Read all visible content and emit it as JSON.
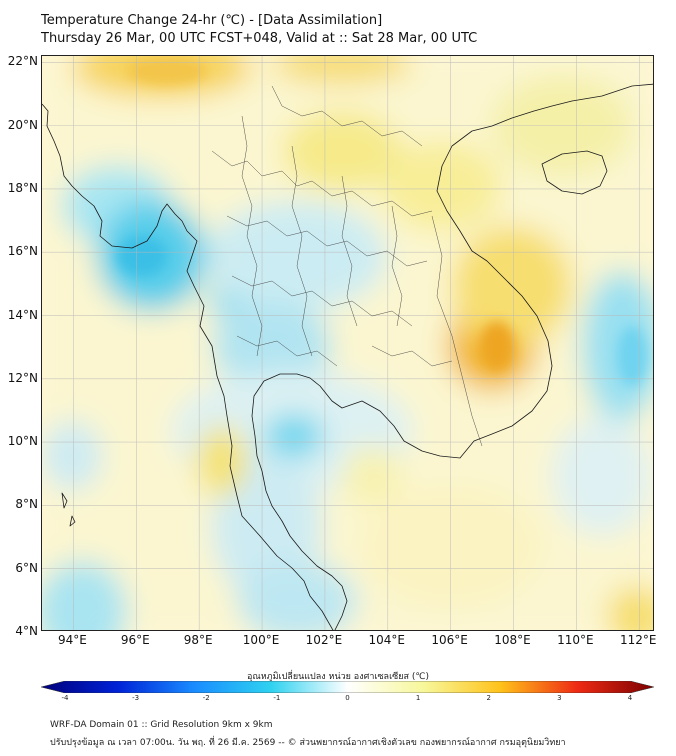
{
  "header": {
    "title": "Temperature Change 24-hr (℃) - [Data Assimilation]",
    "subtitle": "Thursday 26 Mar, 00 UTC FCST+048, Valid at :: Sat 28 Mar, 00 UTC"
  },
  "map": {
    "lon_range": [
      93,
      112.5
    ],
    "lat_range": [
      4,
      22.2
    ],
    "x_labels": [
      "94°E",
      "96°E",
      "98°E",
      "100°E",
      "102°E",
      "104°E",
      "106°E",
      "108°E",
      "110°E",
      "112°E"
    ],
    "x_values": [
      94,
      96,
      98,
      100,
      102,
      104,
      106,
      108,
      110,
      112
    ],
    "y_labels": [
      "22°N",
      "20°N",
      "18°N",
      "16°N",
      "14°N",
      "12°N",
      "10°N",
      "8°N",
      "6°N",
      "4°N"
    ],
    "y_values": [
      22,
      20,
      18,
      16,
      14,
      12,
      10,
      8,
      6,
      4
    ]
  },
  "colorbar": {
    "title": "อุณหภูมิเปลี่ยนแปลง หน่วย องศาเซลเซียส (℃)",
    "range": [
      -4,
      4
    ],
    "ticks": [
      "-4",
      "-3",
      "-2",
      "-1",
      "0",
      "1",
      "2",
      "3",
      "4"
    ],
    "colors": [
      "#00007a",
      "#0022d6",
      "#1a8cff",
      "#2ed2f0",
      "#ffffff",
      "#f7f79a",
      "#ffc21a",
      "#ee2a14",
      "#7a0000"
    ]
  },
  "footer": {
    "line1": "WRF-DA Domain 01 :: Grid Resolution 9km x 9km",
    "line2": "ปรับปรุงข้อมูล ณ เวลา 07:00น. วัน พฤ. ที่ 26 มี.ค. 2569 -- © ส่วนพยากรณ์อากาศเชิงตัวเลข กองพยากรณ์อากาศ กรมอุตุนิยมวิทยา"
  }
}
